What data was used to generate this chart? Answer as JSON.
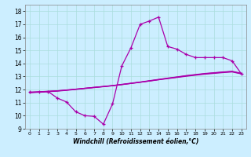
{
  "xlabel": "Windchill (Refroidissement éolien,°C)",
  "xlim": [
    -0.5,
    23.5
  ],
  "ylim": [
    9,
    18.5
  ],
  "xticks": [
    0,
    1,
    2,
    3,
    4,
    5,
    6,
    7,
    8,
    9,
    10,
    11,
    12,
    13,
    14,
    15,
    16,
    17,
    18,
    19,
    20,
    21,
    22,
    23
  ],
  "yticks": [
    9,
    10,
    11,
    12,
    13,
    14,
    15,
    16,
    17,
    18
  ],
  "bg_color": "#cceeff",
  "line_color": "#aa00aa",
  "curve1_x": [
    0,
    1,
    2,
    3,
    4,
    5,
    6,
    7,
    8,
    9,
    10,
    11,
    12,
    13,
    14,
    15,
    16,
    17,
    18,
    19,
    20,
    21,
    22,
    23
  ],
  "curve1_y": [
    11.8,
    11.8,
    11.85,
    11.35,
    11.05,
    10.3,
    10.0,
    9.95,
    9.35,
    10.9,
    13.8,
    15.2,
    17.0,
    17.25,
    17.55,
    15.3,
    15.1,
    14.7,
    14.45,
    14.45,
    14.45,
    14.45,
    14.2,
    13.2
  ],
  "curve2_x": [
    0,
    1,
    2,
    3,
    4,
    5,
    6,
    7,
    8,
    9,
    10,
    11,
    12,
    13,
    14,
    15,
    16,
    17,
    18,
    19,
    20,
    21,
    22,
    23
  ],
  "curve2_y": [
    11.8,
    11.83,
    11.87,
    11.91,
    11.97,
    12.03,
    12.1,
    12.17,
    12.23,
    12.3,
    12.38,
    12.47,
    12.56,
    12.65,
    12.75,
    12.84,
    12.93,
    13.02,
    13.1,
    13.18,
    13.24,
    13.3,
    13.35,
    13.2
  ],
  "curve3_x": [
    0,
    1,
    2,
    3,
    4,
    5,
    6,
    7,
    8,
    9,
    10,
    11,
    12,
    13,
    14,
    15,
    16,
    17,
    18,
    19,
    20,
    21,
    22,
    23
  ],
  "curve3_y": [
    11.78,
    11.82,
    11.86,
    11.9,
    11.96,
    12.03,
    12.1,
    12.17,
    12.24,
    12.31,
    12.4,
    12.49,
    12.58,
    12.68,
    12.78,
    12.88,
    12.97,
    13.07,
    13.15,
    13.23,
    13.29,
    13.35,
    13.4,
    13.25
  ],
  "curve4_x": [
    0,
    1,
    2,
    3,
    4,
    5,
    6,
    7,
    8,
    9,
    10,
    11,
    12,
    13,
    14,
    15,
    16,
    17,
    18,
    19,
    20,
    21,
    22,
    23
  ],
  "curve4_y": [
    11.76,
    11.8,
    11.84,
    11.88,
    11.94,
    12.01,
    12.08,
    12.15,
    12.22,
    12.29,
    12.38,
    12.47,
    12.56,
    12.66,
    12.76,
    12.86,
    12.95,
    13.05,
    13.13,
    13.21,
    13.27,
    13.33,
    13.38,
    13.22
  ]
}
